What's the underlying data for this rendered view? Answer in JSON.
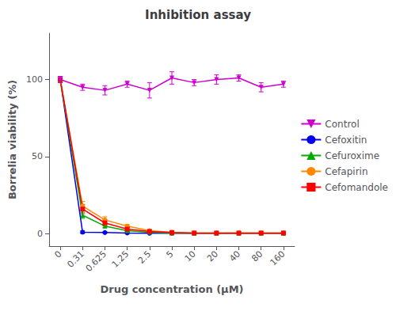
{
  "chart_data": {
    "type": "line",
    "title": "Inhibition assay",
    "xlabel": "Drug concentration (μM)",
    "ylabel": "Borrelia viability (%)",
    "categories": [
      "0",
      "0.31",
      "0.625",
      "1.25",
      "2.5",
      "5",
      "10",
      "20",
      "40",
      "80",
      "160"
    ],
    "series": [
      {
        "name": "Control",
        "color": "#cc00cc",
        "marker": "triangle-down",
        "values": [
          100,
          95,
          93,
          97,
          93,
          101,
          98,
          100,
          101,
          95,
          97
        ],
        "errors": [
          2,
          2,
          3,
          2,
          5,
          4,
          2,
          3,
          2,
          3,
          2
        ]
      },
      {
        "name": "Cefoxitin",
        "color": "#0000ee",
        "marker": "circle",
        "values": [
          100,
          1.0,
          0.8,
          0.5,
          0.3,
          0.3,
          0.3,
          0.3,
          0.3,
          0.3,
          0.3
        ],
        "errors": [
          2,
          0.8,
          0.4,
          0.3,
          0.2,
          0.2,
          0.2,
          0.2,
          0.2,
          0.2,
          0.2
        ]
      },
      {
        "name": "Cefuroxime",
        "color": "#00aa00",
        "marker": "triangle",
        "values": [
          100,
          12,
          5,
          2,
          1,
          0.5,
          0.3,
          0.3,
          0.3,
          0.3,
          0.3
        ],
        "errors": [
          2,
          2,
          1,
          0.5,
          0.5,
          0.3,
          0.2,
          0.2,
          0.2,
          0.2,
          0.2
        ]
      },
      {
        "name": "Cefapirin",
        "color": "#ff8800",
        "marker": "circle",
        "values": [
          100,
          18,
          9,
          5,
          2,
          1,
          0.5,
          0.5,
          0.5,
          0.5,
          0.5
        ],
        "errors": [
          2,
          3,
          2,
          1,
          0.5,
          0.5,
          0.3,
          0.3,
          0.3,
          0.3,
          0.3
        ]
      },
      {
        "name": "Cefomandole",
        "color": "#ff0000",
        "marker": "square",
        "values": [
          100,
          16,
          7,
          3,
          1.5,
          0.8,
          0.5,
          0.5,
          0.5,
          0.5,
          0.5
        ],
        "errors": [
          2,
          3,
          2,
          1,
          0.5,
          0.4,
          0.3,
          0.3,
          0.3,
          0.3,
          0.3
        ]
      }
    ],
    "ylim": [
      -8,
      130
    ],
    "yticks": [
      0,
      50,
      100
    ],
    "grid": false,
    "legend": "right"
  }
}
